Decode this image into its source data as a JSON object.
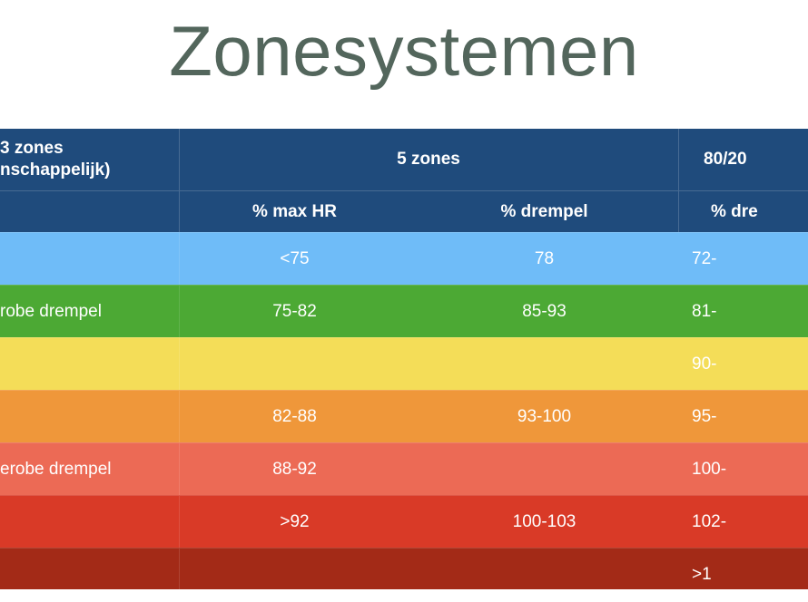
{
  "title": "Zonesystemen",
  "table": {
    "header_top": {
      "col0_line1": "3 zones",
      "col0_line2": "nschappelijk)",
      "col1": "5 zones",
      "col3": "80/20"
    },
    "header_sub": {
      "col1": "% max HR",
      "col2": "% drempel",
      "col3": "% dre"
    },
    "rows": [
      {
        "color": "#6fbcf8",
        "label": "",
        "max_hr": "<75",
        "drempel": "78",
        "pct_8020": "72-"
      },
      {
        "color": "#4ca934",
        "label": "robe drempel",
        "max_hr": "75-82",
        "drempel": "85-93",
        "pct_8020": "81-"
      },
      {
        "color": "#f4dd58",
        "label": "",
        "max_hr": "",
        "drempel": "",
        "pct_8020": "90-"
      },
      {
        "color": "#ef973a",
        "label": "",
        "max_hr": "82-88",
        "drempel": "93-100",
        "pct_8020": "95-"
      },
      {
        "color": "#ec6a55",
        "label": "erobe drempel",
        "max_hr": "88-92",
        "drempel": "",
        "pct_8020": "100-"
      },
      {
        "color": "#d93a27",
        "label": "",
        "max_hr": ">92",
        "drempel": "100-103",
        "pct_8020": "102-"
      },
      {
        "color": "#a32a17",
        "label": "",
        "max_hr": "",
        "drempel": "",
        "pct_8020": ">1"
      }
    ]
  },
  "colors": {
    "header": "#1f4b7c",
    "title": "#53665c"
  }
}
